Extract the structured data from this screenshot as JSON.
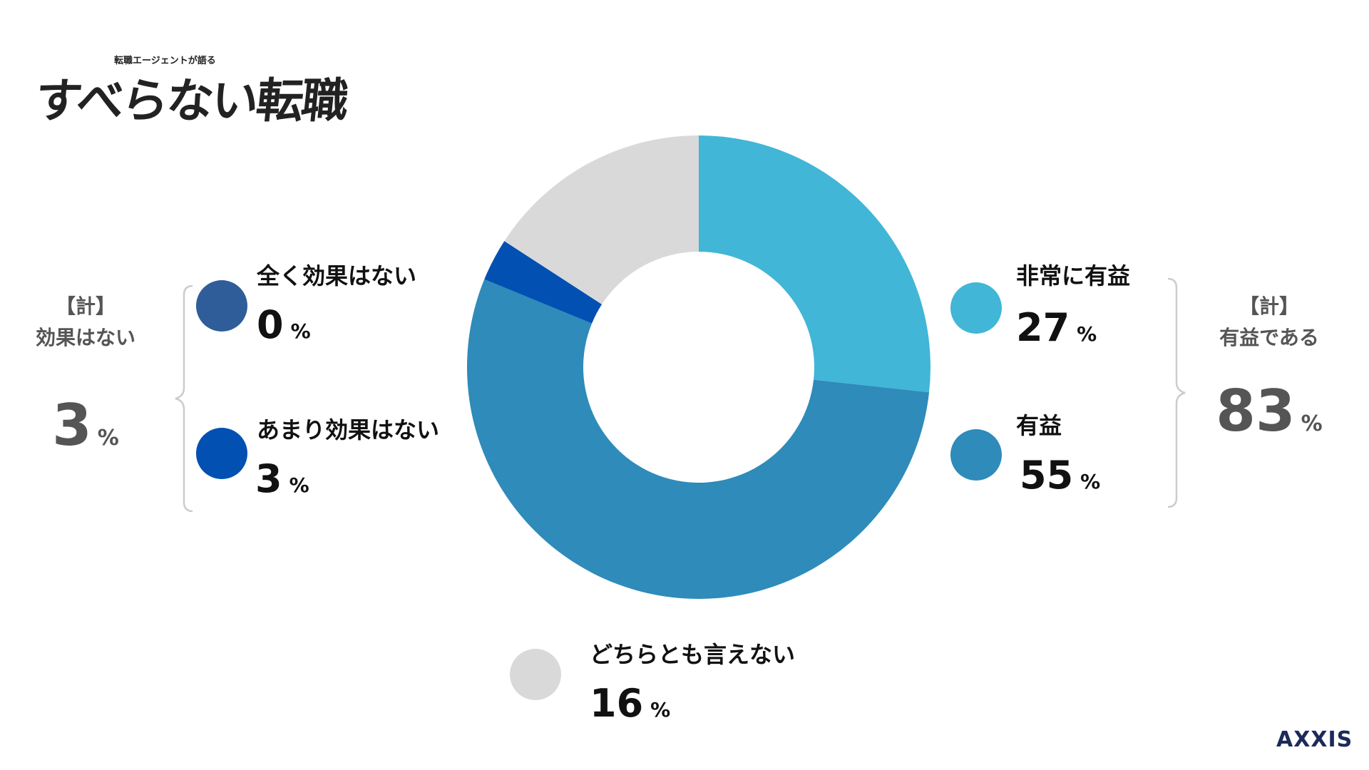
{
  "logo": {
    "main": "すべらない転職",
    "sub": "転職エージェントが語る"
  },
  "chart_data": {
    "type": "pie",
    "donut": true,
    "slices": [
      {
        "label": "非常に有益",
        "value": 27,
        "color": "#41b6d7"
      },
      {
        "label": "有益",
        "value": 55,
        "color": "#2e8bba"
      },
      {
        "label": "あまり効果はない",
        "value": 3,
        "color": "#0250b2"
      },
      {
        "label": "全く効果はない",
        "value": 0,
        "color": "#2f5d9a"
      },
      {
        "label": "どちらとも言えない",
        "value": 16,
        "color": "#d9d9d9"
      }
    ],
    "unit": "%",
    "totals": [
      {
        "label": "【計】有益である",
        "line1": "【計】",
        "line2": "有益である",
        "value": 83
      },
      {
        "label": "【計】効果はない",
        "line1": "【計】",
        "line2": "効果はない",
        "value": 3
      }
    ]
  },
  "brand": "AXXIS"
}
